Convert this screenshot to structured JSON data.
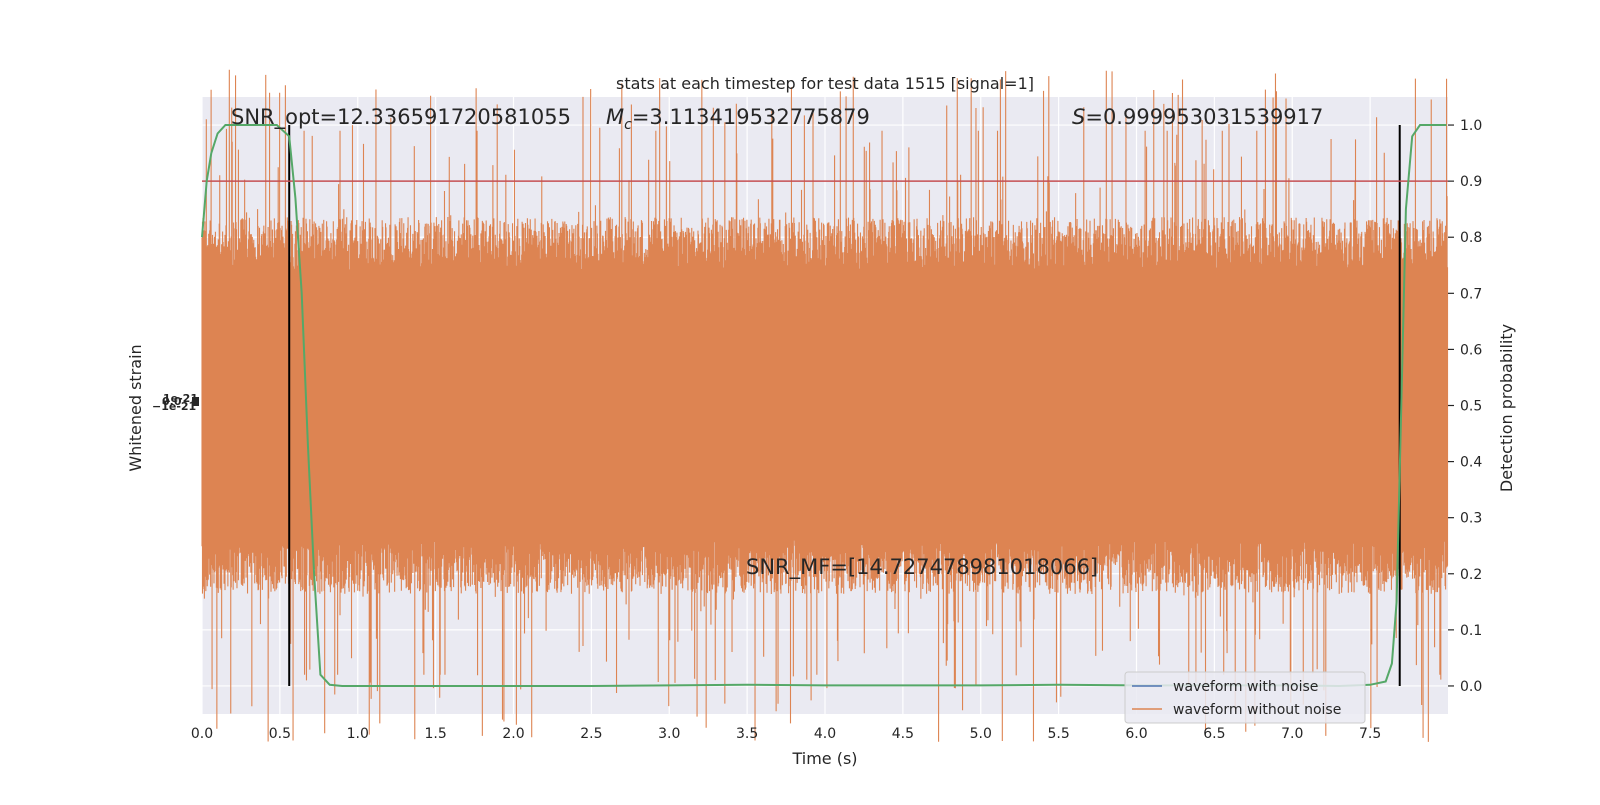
{
  "chart_data": {
    "type": "line",
    "title": "stats at each timestep for test data 1515 [signal=1]",
    "xlabel": "Time (s)",
    "ylabel_left": "Whitened strain",
    "ylabel_right": "Detection probability",
    "xlim": [
      0.0,
      8.0
    ],
    "ylim_right": [
      -0.05,
      1.05
    ],
    "x_ticks": [
      "0.0",
      "0.5",
      "1.0",
      "1.5",
      "2.0",
      "2.5",
      "3.0",
      "3.5",
      "4.0",
      "4.5",
      "5.0",
      "5.5",
      "6.0",
      "6.5",
      "7.0",
      "7.5"
    ],
    "y_ticks_right": [
      "0.0",
      "0.1",
      "0.2",
      "0.3",
      "0.4",
      "0.5",
      "0.6",
      "0.7",
      "0.8",
      "0.9",
      "1.0"
    ],
    "grid": true,
    "legend": {
      "placement": "lower-right",
      "entries": [
        {
          "label": "waveform with noise",
          "color": "#4c72b0"
        },
        {
          "label": "waveform without noise",
          "color": "#dd8452"
        }
      ]
    },
    "annotations": {
      "snr_opt": "SNR_opt=12.336591720581055",
      "mc_symbol": "M",
      "mc_sub": "c",
      "mc_value": "=3.113419532775879",
      "s_symbol": "S",
      "s_value": "=0.999953031539917",
      "snr_mf": "SNR_MF=[14.727478981018066]"
    },
    "threshold": {
      "y": 0.9,
      "color": "#c44e52"
    },
    "vertical_lines_x": [
      0.56,
      7.69
    ],
    "detection_probability": {
      "color": "#55a868",
      "x": [
        0.0,
        0.03,
        0.06,
        0.1,
        0.15,
        0.2,
        0.3,
        0.4,
        0.48,
        0.52,
        0.56,
        0.6,
        0.64,
        0.68,
        0.72,
        0.76,
        0.82,
        0.9,
        1.5,
        2.5,
        3.0,
        3.5,
        4.0,
        5.0,
        5.5,
        6.0,
        6.5,
        7.0,
        7.3,
        7.5,
        7.6,
        7.64,
        7.67,
        7.7,
        7.73,
        7.77,
        7.82,
        7.9,
        7.99
      ],
      "y": [
        0.8,
        0.9,
        0.95,
        0.985,
        1.0,
        1.0,
        1.0,
        1.0,
        1.0,
        0.99,
        0.98,
        0.87,
        0.7,
        0.43,
        0.2,
        0.02,
        0.002,
        0.0,
        0.0,
        0.0,
        0.001,
        0.002,
        0.001,
        0.001,
        0.002,
        0.001,
        0.001,
        0.001,
        0.0,
        0.002,
        0.008,
        0.04,
        0.15,
        0.5,
        0.85,
        0.98,
        1.0,
        1.0,
        1.0
      ]
    },
    "waveform_without_noise": {
      "color": "#dd8452",
      "center": 0.5,
      "typical_peak": 0.32,
      "max_upper": 0.99,
      "min_lower": 0.02
    },
    "left_axis_overlapping_tick_labels": [
      "−1e-21",
      "0.0",
      "1e-21"
    ]
  }
}
